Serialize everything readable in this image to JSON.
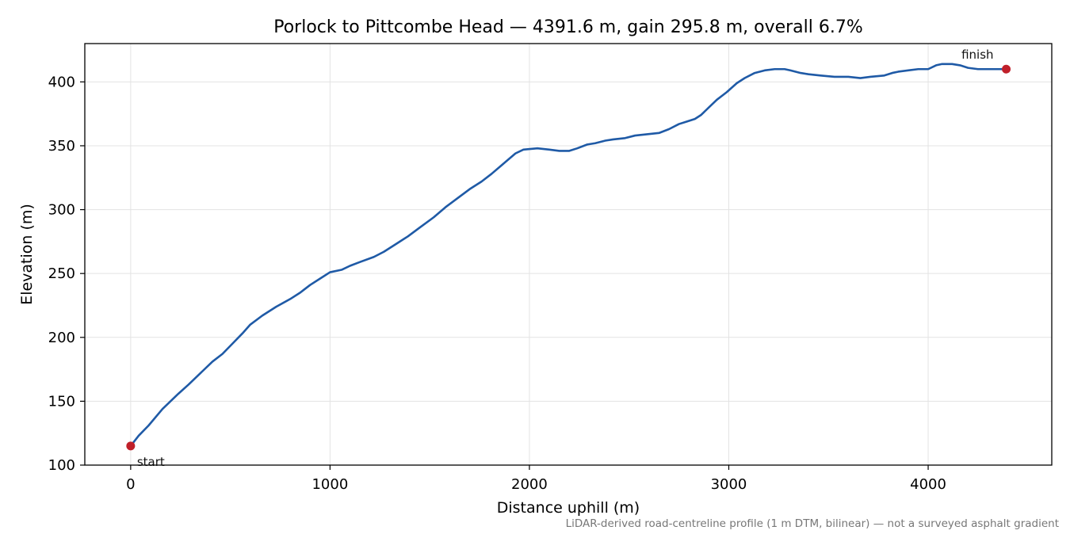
{
  "chart_data": {
    "type": "line",
    "title": "Porlock to Pittcombe Head — 4391.6 m, gain 295.8 m, overall 6.7%",
    "xlabel": "Distance uphill (m)",
    "ylabel": "Elevation (m)",
    "footnote": "LiDAR-derived road-centreline profile (1 m DTM, bilinear) — not a surveyed asphalt gradient",
    "xlim": [
      -230,
      4620
    ],
    "ylim": [
      100,
      430
    ],
    "x_ticks": [
      0,
      1000,
      2000,
      3000,
      4000
    ],
    "y_ticks": [
      100,
      150,
      200,
      250,
      300,
      350,
      400
    ],
    "grid": true,
    "colors": {
      "line": "#1f5aa6",
      "marker": "#c0202a"
    },
    "series": [
      {
        "x": [
          0,
          40,
          90,
          160,
          240,
          290,
          350,
          410,
          460,
          510,
          560,
          600,
          660,
          730,
          800,
          850,
          900,
          960,
          1000,
          1060,
          1100,
          1150,
          1220,
          1270,
          1330,
          1390,
          1450,
          1520,
          1580,
          1640,
          1700,
          1760,
          1810,
          1870,
          1930,
          1970,
          2040,
          2100,
          2150,
          2200,
          2240,
          2290,
          2330,
          2380,
          2420,
          2480,
          2530,
          2590,
          2650,
          2700,
          2750,
          2790,
          2830,
          2860,
          2900,
          2940,
          2990,
          3040,
          3080,
          3130,
          3180,
          3230,
          3280,
          3310,
          3360,
          3400,
          3460,
          3530,
          3600,
          3660,
          3710,
          3780,
          3820,
          3850,
          3900,
          3950,
          4000,
          4040,
          4070,
          4120,
          4160,
          4200,
          4250,
          4300,
          4340,
          4391.6
        ],
        "y": [
          115,
          123,
          131,
          144,
          156,
          163,
          172,
          181,
          187,
          195,
          203,
          210,
          217,
          224,
          230,
          235,
          241,
          247,
          251,
          253,
          256,
          259,
          263,
          267,
          273,
          279,
          286,
          294,
          302,
          309,
          316,
          322,
          328,
          336,
          344,
          347,
          348,
          347,
          346,
          346,
          348,
          351,
          352,
          354,
          355,
          356,
          358,
          359,
          360,
          363,
          367,
          369,
          371,
          374,
          380,
          386,
          392,
          399,
          403,
          407,
          409,
          410,
          410,
          409,
          407,
          406,
          405,
          404,
          404,
          403,
          404,
          405,
          407,
          408,
          409,
          410,
          410,
          413,
          414,
          414,
          413,
          411,
          410,
          410,
          410,
          410
        ]
      }
    ],
    "annotations": [
      {
        "text": "start",
        "x": 0,
        "y": 115
      },
      {
        "text": "finish",
        "x": 4391.6,
        "y": 410
      }
    ]
  }
}
